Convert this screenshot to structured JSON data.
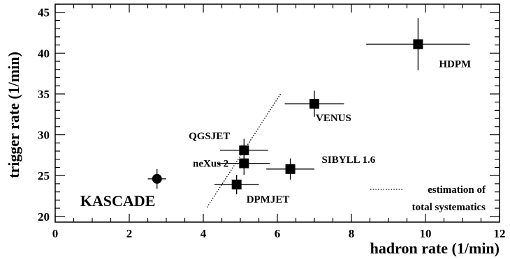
{
  "chart_data": {
    "type": "scatter",
    "xlabel": "hadron rate (1/min)",
    "ylabel": "trigger rate (1/min)",
    "xlim": [
      0,
      12
    ],
    "ylim": [
      19.3,
      46
    ],
    "x_ticks": [
      0,
      2,
      4,
      6,
      8,
      10,
      12
    ],
    "y_ticks": [
      20,
      25,
      30,
      35,
      40,
      45
    ],
    "x_minor_step": 0.5,
    "y_minor_step": 1,
    "grid": false,
    "legend_position": "bottom-right",
    "points": [
      {
        "label": "HDPM",
        "x": 9.8,
        "y": 41.1,
        "xerr": 1.4,
        "yerr": 3.2,
        "marker": "square"
      },
      {
        "label": "VENUS",
        "x": 7.0,
        "y": 33.8,
        "xerr": 0.8,
        "yerr": 1.6,
        "marker": "square"
      },
      {
        "label": "QGSJET",
        "x": 5.1,
        "y": 28.1,
        "xerr": 0.65,
        "yerr": 1.4,
        "marker": "square"
      },
      {
        "label": "neXus 2",
        "x": 5.1,
        "y": 26.5,
        "xerr": 0.7,
        "yerr": 1.4,
        "marker": "square"
      },
      {
        "label": "SIBYLL 1.6",
        "x": 6.35,
        "y": 25.8,
        "xerr": 0.65,
        "yerr": 1.3,
        "marker": "square"
      },
      {
        "label": "DPMJET",
        "x": 4.9,
        "y": 23.9,
        "xerr": 0.6,
        "yerr": 1.2,
        "marker": "square"
      },
      {
        "label": "KASCADE",
        "x": 2.75,
        "y": 24.6,
        "xerr": 0.25,
        "yerr": 1.2,
        "marker": "circle"
      }
    ],
    "systematics_line": {
      "x": [
        4.1,
        6.1
      ],
      "y": [
        21.1,
        35.1
      ],
      "style": "dotted"
    },
    "legend": {
      "label_line1": "estimation of",
      "label_line2": "total systematics"
    }
  }
}
